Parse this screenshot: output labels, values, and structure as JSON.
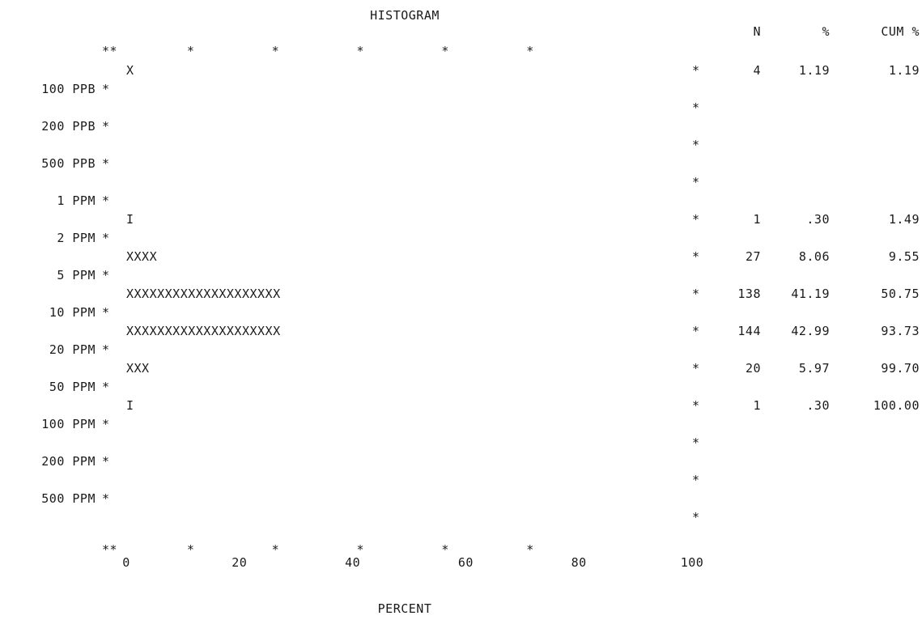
{
  "chart_data": {
    "type": "bar",
    "orientation": "horizontal",
    "title": "HISTOGRAM",
    "xlabel": "PERCENT",
    "xlim": [
      0,
      100
    ],
    "x_ticks": [
      "0",
      "20",
      "40",
      "60",
      "80",
      "100"
    ],
    "y_tick_labels": [
      "100 PPB",
      "200 PPB",
      "500 PPB",
      "1 PPM",
      "2 PPM",
      "5 PPM",
      "10 PPM",
      "20 PPM",
      "50 PPM",
      "100 PPM",
      "200 PPM",
      "500 PPM"
    ],
    "table_headers": [
      "N",
      "%",
      "CUM %"
    ],
    "bins": [
      {
        "bar": "X",
        "n": "4",
        "pct": "1.19",
        "cum": "1.19",
        "value": 1.19
      },
      {
        "bar": "",
        "n": "",
        "pct": "",
        "cum": "",
        "value": 0
      },
      {
        "bar": "",
        "n": "",
        "pct": "",
        "cum": "",
        "value": 0
      },
      {
        "bar": "",
        "n": "",
        "pct": "",
        "cum": "",
        "value": 0
      },
      {
        "bar": "I",
        "n": "1",
        "pct": ".30",
        "cum": "1.49",
        "value": 0.3
      },
      {
        "bar": "XXXX",
        "n": "27",
        "pct": "8.06",
        "cum": "9.55",
        "value": 8.06
      },
      {
        "bar": "XXXXXXXXXXXXXXXXXXXX",
        "n": "138",
        "pct": "41.19",
        "cum": "50.75",
        "value": 41.19
      },
      {
        "bar": "XXXXXXXXXXXXXXXXXXXX",
        "n": "144",
        "pct": "42.99",
        "cum": "93.73",
        "value": 42.99
      },
      {
        "bar": "XXX",
        "n": "20",
        "pct": "5.97",
        "cum": "99.70",
        "value": 5.97
      },
      {
        "bar": "I",
        "n": "1",
        "pct": ".30",
        "cum": "100.00",
        "value": 0.3
      },
      {
        "bar": "",
        "n": "",
        "pct": "",
        "cum": "",
        "value": 0
      },
      {
        "bar": "",
        "n": "",
        "pct": "",
        "cum": "",
        "value": 0
      },
      {
        "bar": "",
        "n": "",
        "pct": "",
        "cum": "",
        "value": 0
      }
    ],
    "frame_top_border": "**         *          *          *          *          *",
    "frame_bottom_border": "**         *          *          *          *          *",
    "frame_mark": "*",
    "grid": false
  }
}
